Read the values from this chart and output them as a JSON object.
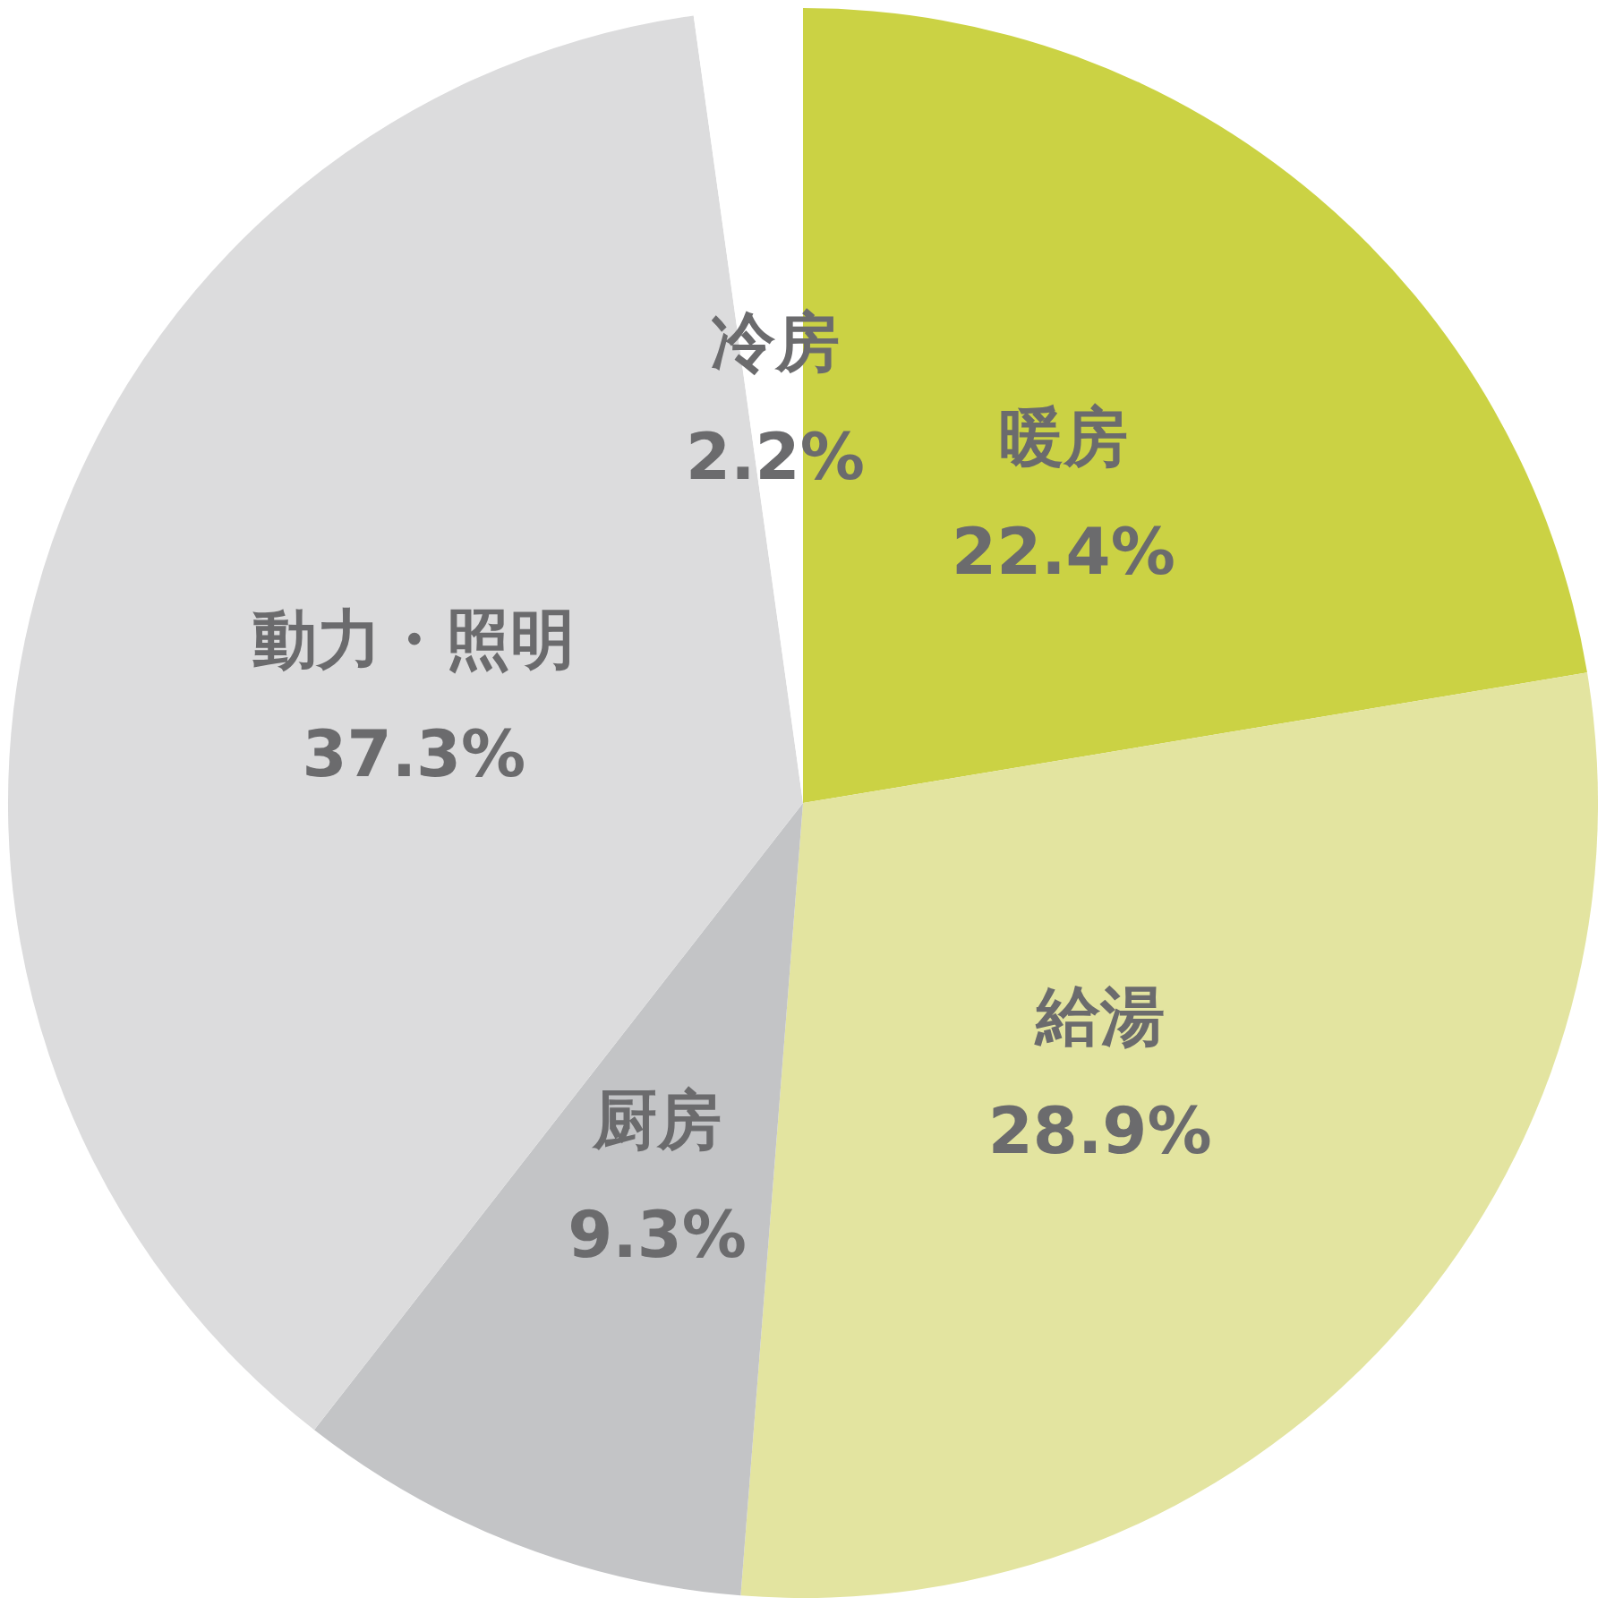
{
  "chart_data": {
    "type": "pie",
    "categories": [
      "暖房",
      "給湯",
      "厨房",
      "動力・照明",
      "冷房"
    ],
    "values": [
      22.4,
      28.9,
      9.3,
      37.3,
      2.2
    ],
    "colors": [
      "#cbd244",
      "#e3e4a0",
      "#c3c4c6",
      "#dcdcdd",
      "#ffffff"
    ],
    "value_labels": [
      "22.4%",
      "28.9%",
      "9.3%",
      "37.3%",
      "2.2%"
    ],
    "legend": false
  }
}
